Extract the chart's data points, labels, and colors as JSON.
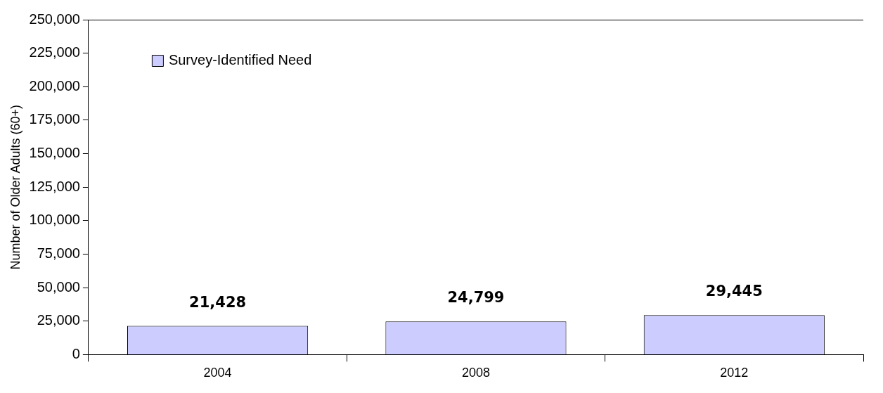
{
  "chart_data": {
    "type": "bar",
    "ylabel": "Number of Older Adults (60+)",
    "categories": [
      "2004",
      "2008",
      "2012"
    ],
    "series": [
      {
        "name": "Survey-Identified Need",
        "color": "#ccccff",
        "values": [
          21428,
          24799,
          29445
        ],
        "value_labels": [
          "21,428",
          "24,799",
          "29,445"
        ]
      }
    ],
    "ylim": [
      0,
      250000
    ],
    "yticks": [
      0,
      {
        "value": 25000,
        "label": "25,000"
      },
      {
        "value": 50000,
        "label": "50,000"
      },
      {
        "value": 75000,
        "label": "75,000"
      },
      {
        "value": 100000,
        "label": "100,000"
      },
      {
        "value": 125000,
        "label": "125,000"
      },
      {
        "value": 150000,
        "label": "150,000"
      },
      {
        "value": 175000,
        "label": "175,000"
      },
      {
        "value": 200000,
        "label": "200,000"
      },
      {
        "value": 225000,
        "label": "225,000"
      },
      {
        "value": 250000,
        "label": "250,000"
      }
    ],
    "legend": "top left",
    "grid": false
  }
}
